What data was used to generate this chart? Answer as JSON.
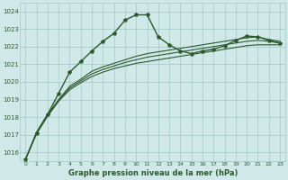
{
  "background_color": "#d0e8e8",
  "grid_color": "#a0c8c8",
  "line_color": "#2d5a2d",
  "text_color": "#2d5a2d",
  "xlabel": "Graphe pression niveau de la mer (hPa)",
  "ylim": [
    1015.5,
    1024.5
  ],
  "xlim": [
    -0.5,
    23.5
  ],
  "yticks": [
    1016,
    1017,
    1018,
    1019,
    1020,
    1021,
    1022,
    1023,
    1024
  ],
  "xticks": [
    0,
    1,
    2,
    3,
    4,
    5,
    6,
    7,
    8,
    9,
    10,
    11,
    12,
    13,
    14,
    15,
    16,
    17,
    18,
    19,
    20,
    21,
    22,
    23
  ],
  "series": [
    {
      "x": [
        0,
        1,
        2,
        3,
        4,
        5,
        6,
        7,
        8,
        9,
        10,
        11,
        12,
        13,
        14,
        15,
        16,
        17,
        18,
        19,
        20,
        21,
        22,
        23
      ],
      "y": [
        1015.6,
        1017.1,
        1018.15,
        1019.35,
        1020.55,
        1021.15,
        1021.75,
        1022.3,
        1022.75,
        1023.5,
        1023.8,
        1023.8,
        1022.55,
        1022.1,
        1021.75,
        1021.6,
        1021.75,
        1021.85,
        1022.05,
        1022.35,
        1022.6,
        1022.55,
        1022.35,
        1022.2
      ],
      "marker": true,
      "lw": 1.0
    },
    {
      "x": [
        0,
        1,
        2,
        3,
        4,
        5,
        6,
        7,
        8,
        9,
        10,
        11,
        12,
        13,
        14,
        15,
        16,
        17,
        18,
        19,
        20,
        21,
        22,
        23
      ],
      "y": [
        1015.6,
        1017.05,
        1018.05,
        1018.9,
        1019.55,
        1019.95,
        1020.3,
        1020.55,
        1020.75,
        1020.9,
        1021.05,
        1021.15,
        1021.25,
        1021.35,
        1021.45,
        1021.55,
        1021.65,
        1021.75,
        1021.85,
        1021.95,
        1022.05,
        1022.1,
        1022.1,
        1022.1
      ],
      "marker": false,
      "lw": 0.8
    },
    {
      "x": [
        0,
        1,
        2,
        3,
        4,
        5,
        6,
        7,
        8,
        9,
        10,
        11,
        12,
        13,
        14,
        15,
        16,
        17,
        18,
        19,
        20,
        21,
        22,
        23
      ],
      "y": [
        1015.6,
        1017.1,
        1018.1,
        1018.95,
        1019.65,
        1020.05,
        1020.45,
        1020.7,
        1020.9,
        1021.1,
        1021.25,
        1021.4,
        1021.5,
        1021.6,
        1021.7,
        1021.8,
        1021.9,
        1022.0,
        1022.1,
        1022.2,
        1022.3,
        1022.35,
        1022.3,
        1022.2
      ],
      "marker": false,
      "lw": 0.8
    },
    {
      "x": [
        0,
        1,
        2,
        3,
        4,
        5,
        6,
        7,
        8,
        9,
        10,
        11,
        12,
        13,
        14,
        15,
        16,
        17,
        18,
        19,
        20,
        21,
        22,
        23
      ],
      "y": [
        1015.6,
        1017.15,
        1018.15,
        1019.0,
        1019.75,
        1020.15,
        1020.6,
        1020.85,
        1021.05,
        1021.25,
        1021.45,
        1021.6,
        1021.7,
        1021.8,
        1021.9,
        1022.0,
        1022.1,
        1022.2,
        1022.3,
        1022.4,
        1022.5,
        1022.55,
        1022.4,
        1022.3
      ],
      "marker": false,
      "lw": 0.8
    }
  ]
}
